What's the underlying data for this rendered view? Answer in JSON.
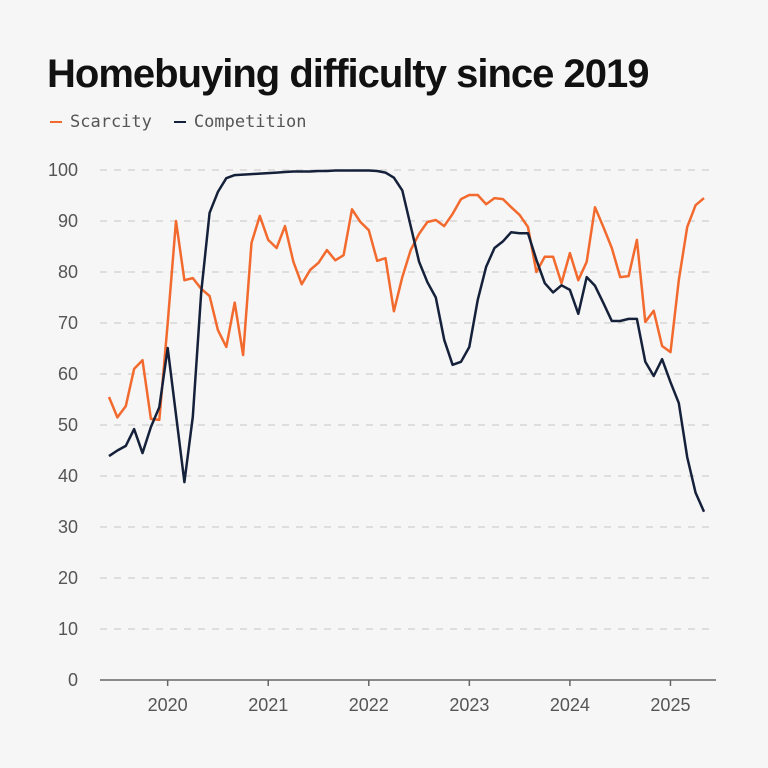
{
  "chart_data": {
    "type": "line",
    "title": "Homebuying difficulty since 2019",
    "xlabel": "",
    "ylabel": "",
    "x_start": "2019-06",
    "x_end": "2025-05",
    "x_frequency": "monthly",
    "x_ticks": [
      "2020",
      "2021",
      "2022",
      "2023",
      "2024",
      "2025"
    ],
    "y_ticks": [
      0,
      10,
      20,
      30,
      40,
      50,
      60,
      70,
      80,
      90,
      100
    ],
    "ylim": [
      0,
      100
    ],
    "grid": "horizontal dashed",
    "legend_position": "top-left",
    "series": [
      {
        "name": "Scarcity",
        "color": "#f26a2e",
        "values": [
          55.5,
          51.5,
          53.7,
          61,
          62.7,
          51.2,
          51,
          70,
          90,
          78.4,
          78.8,
          76.7,
          75.3,
          68.6,
          65.3,
          74,
          63.7,
          85.7,
          91,
          86.3,
          84.7,
          89,
          82,
          77.6,
          80.4,
          81.8,
          84.3,
          82.3,
          83.3,
          92.3,
          89.8,
          88.2,
          82.2,
          82.7,
          72.3,
          79,
          84.3,
          87.5,
          89.8,
          90.2,
          89,
          91.4,
          94.3,
          95.1,
          95.1,
          93.3,
          94.5,
          94.3,
          92.7,
          91.2,
          88.8,
          80,
          83,
          83,
          77.8,
          83.7,
          78.4,
          82,
          92.7,
          88.8,
          84.7,
          79,
          79.2,
          86.3,
          70.2,
          72.4,
          65.5,
          64.3,
          78.4,
          88.8,
          93.1,
          94.5
        ]
      },
      {
        "name": "Competition",
        "color": "#15213a",
        "values": [
          43.9,
          45,
          45.9,
          49.2,
          44.5,
          49.6,
          53.5,
          65.1,
          52,
          38.8,
          51.6,
          76,
          91.6,
          95.7,
          98.4,
          99,
          99.1,
          99.2,
          99.3,
          99.4,
          99.5,
          99.6,
          99.7,
          99.7,
          99.7,
          99.8,
          99.8,
          99.9,
          99.9,
          99.9,
          99.9,
          99.9,
          99.8,
          99.5,
          98.5,
          96,
          89,
          82,
          78,
          75,
          66.7,
          61.8,
          62.4,
          65.3,
          74.5,
          81,
          84.7,
          86,
          87.8,
          87.6,
          87.6,
          82.4,
          77.8,
          76,
          77.4,
          76.5,
          71.8,
          79,
          77.3,
          73.9,
          70.4,
          70.4,
          70.8,
          70.8,
          62.4,
          59.6,
          62.9,
          58.4,
          54.3,
          43.7,
          36.7,
          33
        ]
      }
    ]
  }
}
